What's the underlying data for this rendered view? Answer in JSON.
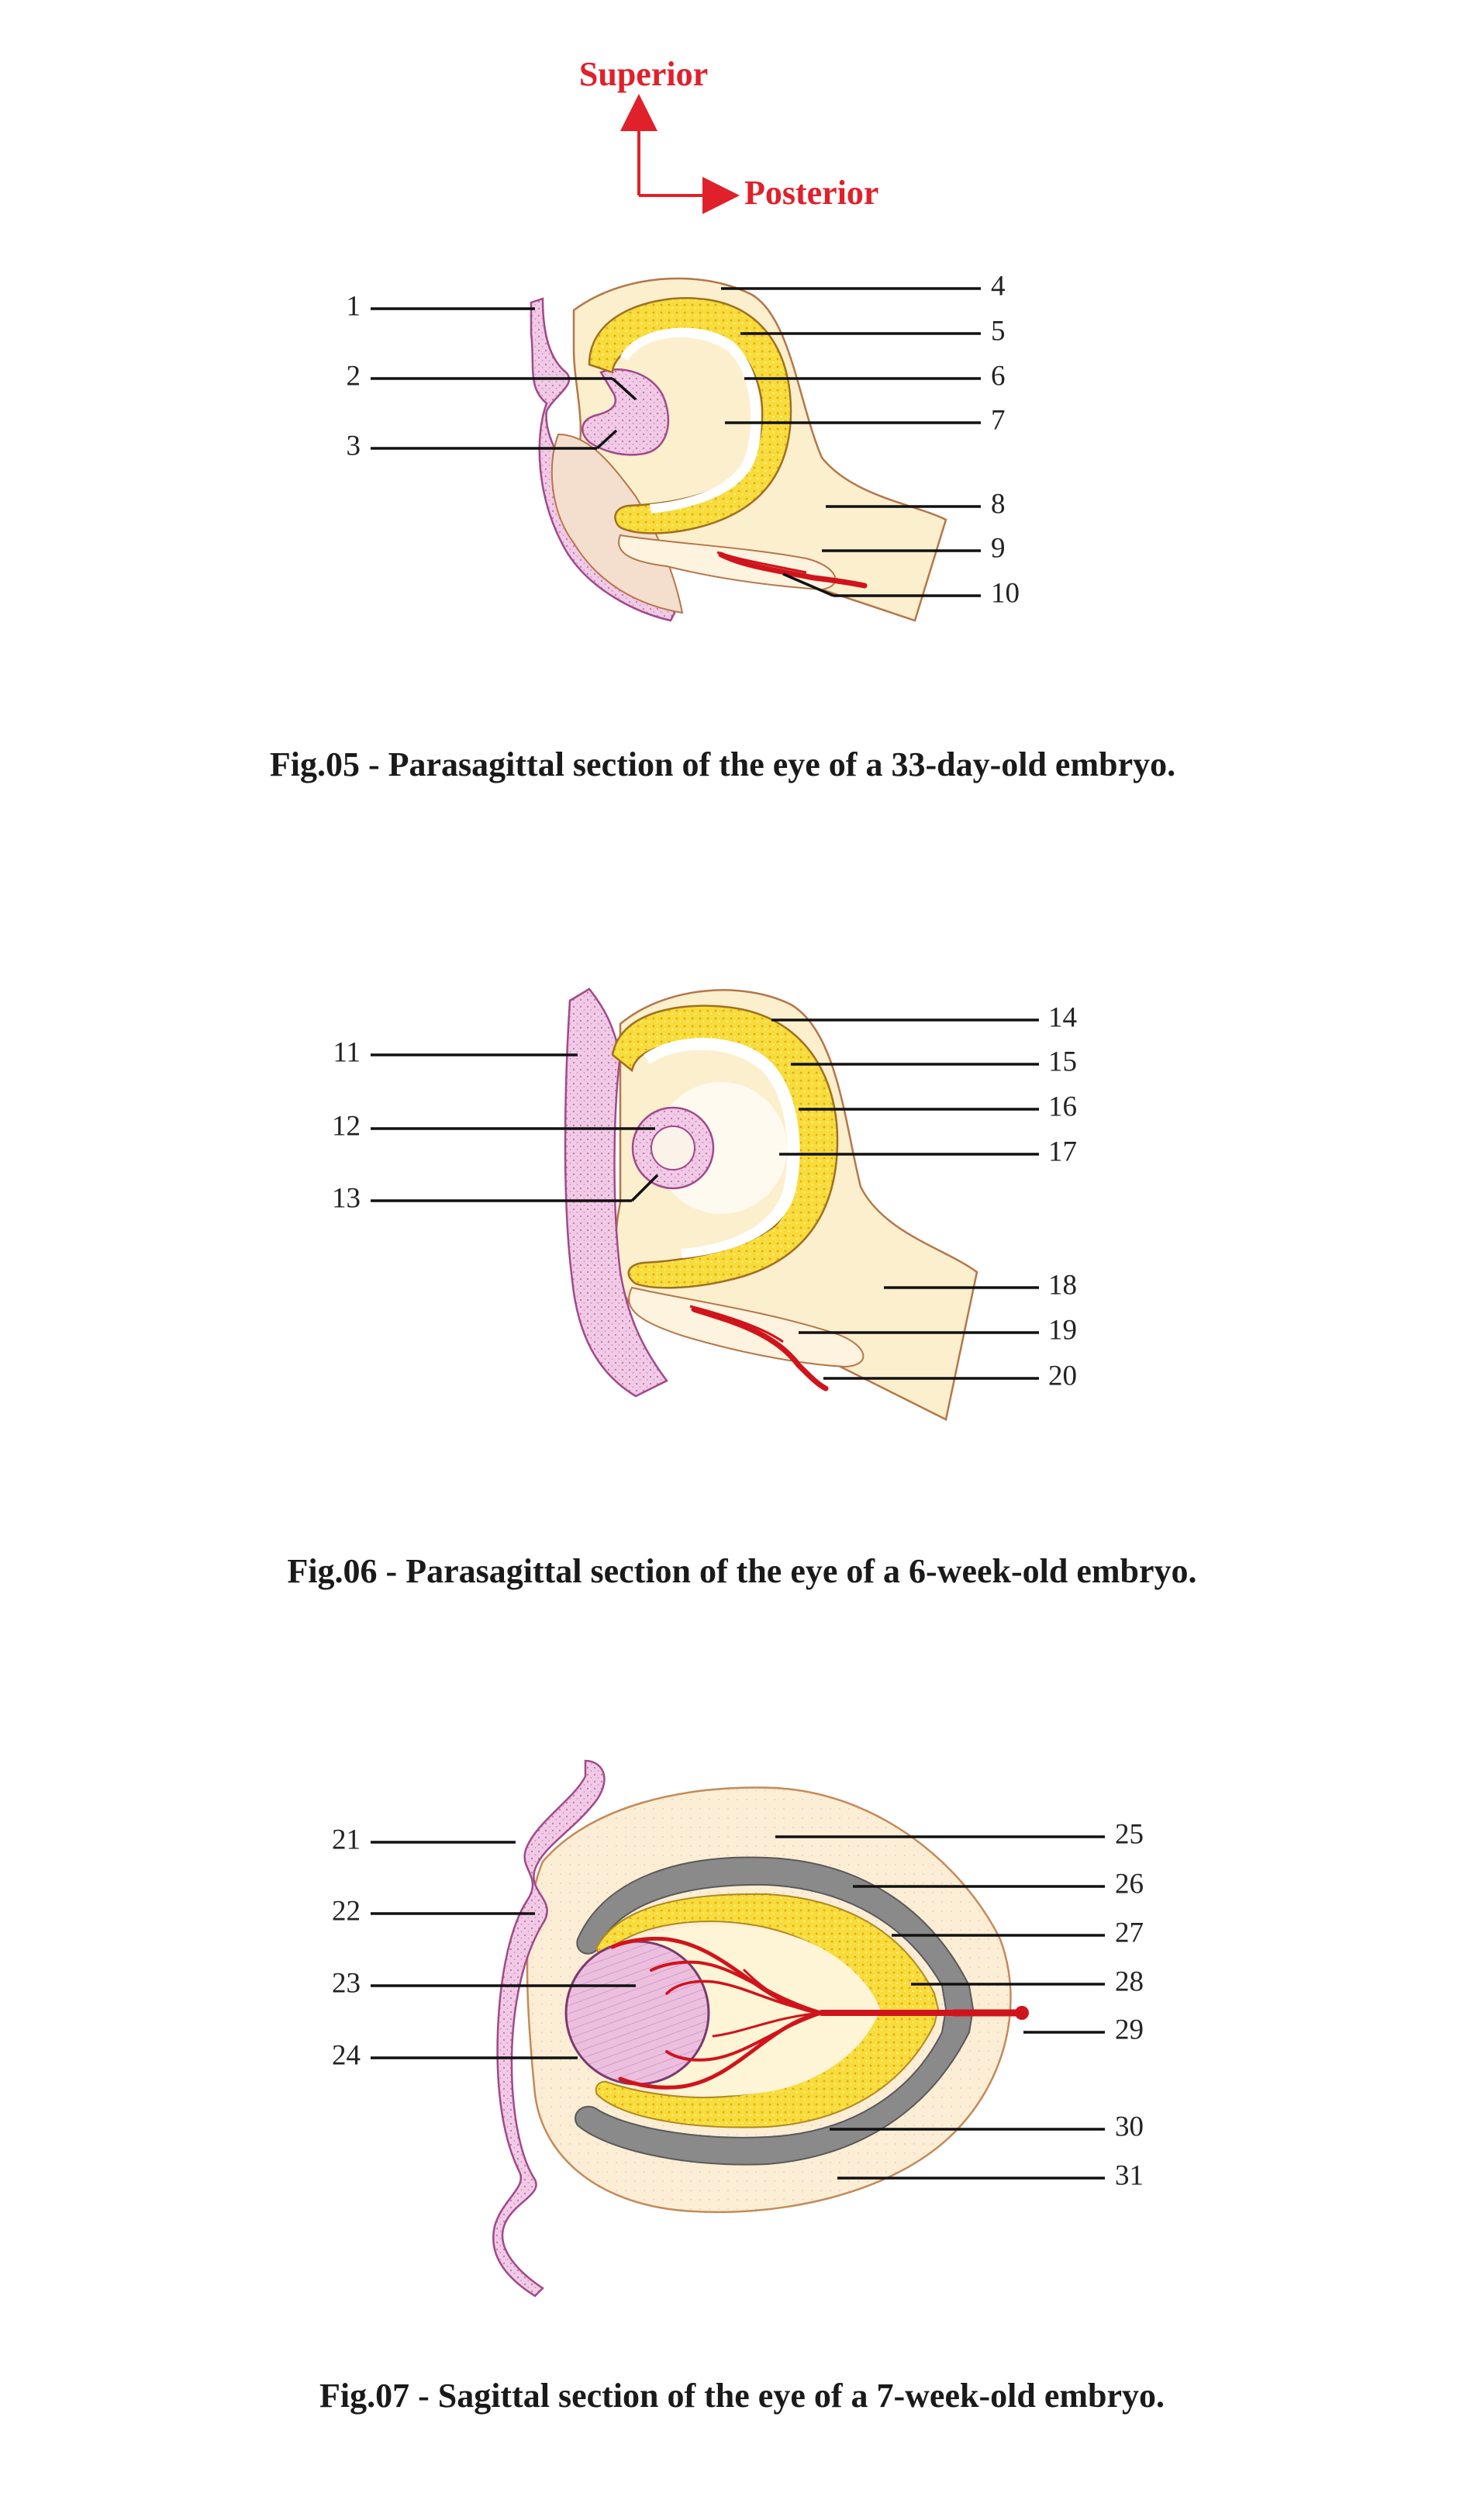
{
  "orientation": {
    "superior": "Superior",
    "posterior": "Posterior",
    "color": "#e0202a"
  },
  "figures": [
    {
      "caption": "Fig.05 - Parasagittal section of the eye of a 33-day-old embryo.",
      "labels": [
        "1",
        "2",
        "3",
        "4",
        "5",
        "6",
        "7",
        "8",
        "9",
        "10"
      ]
    },
    {
      "caption": "Fig.06 - Parasagittal section of the eye of a 6-week-old embryo.",
      "labels": [
        "11",
        "12",
        "13",
        "14",
        "15",
        "16",
        "17",
        "18",
        "19",
        "20"
      ]
    },
    {
      "caption": "Fig.07 - Sagittal section of the eye of a 7-week-old embryo.",
      "labels": [
        "21",
        "22",
        "23",
        "24",
        "25",
        "26",
        "27",
        "28",
        "29",
        "30",
        "31"
      ]
    }
  ],
  "colors": {
    "ectoderm": "#e9b6da",
    "mesenchyme": "#fdf0c8",
    "neural_retina": "#f7dc3c",
    "pigment_layer": "#808080",
    "vessel": "#d0141c",
    "outline": "#a0522d"
  }
}
